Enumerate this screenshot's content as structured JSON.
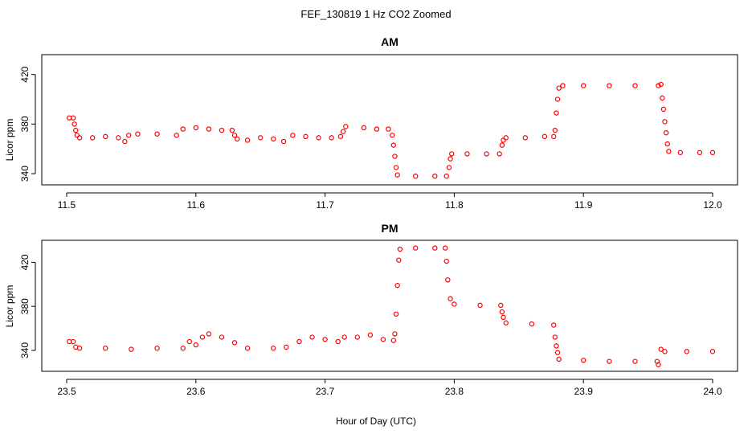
{
  "figure": {
    "title": "FEF_130819  1 Hz CO2 Zoomed",
    "xlabel": "Hour of Day (UTC)",
    "point_color": "#ff0000"
  },
  "chart_data": [
    {
      "type": "scatter",
      "title": "AM",
      "xlabel": "",
      "ylabel": "Licor ppm",
      "xlim": [
        11.5,
        12.0
      ],
      "ylim": [
        331,
        436
      ],
      "xticks": [
        11.5,
        11.6,
        11.7,
        11.8,
        11.9,
        12.0
      ],
      "xtick_labels": [
        "11.5",
        "11.6",
        "11.7",
        "11.8",
        "11.9",
        "12.0"
      ],
      "yticks": [
        340,
        380,
        420
      ],
      "ytick_labels": [
        "340",
        "380",
        "420"
      ],
      "grid": false,
      "series": [
        {
          "marker": "open-circle",
          "color": "#ff0000",
          "points": [
            [
              11.502,
              385
            ],
            [
              11.505,
              385
            ],
            [
              11.506,
              380
            ],
            [
              11.507,
              375
            ],
            [
              11.508,
              371
            ],
            [
              11.51,
              369
            ],
            [
              11.52,
              369
            ],
            [
              11.53,
              370
            ],
            [
              11.54,
              369
            ],
            [
              11.545,
              366
            ],
            [
              11.548,
              371
            ],
            [
              11.555,
              372
            ],
            [
              11.57,
              372
            ],
            [
              11.585,
              371
            ],
            [
              11.59,
              376
            ],
            [
              11.6,
              377
            ],
            [
              11.61,
              376
            ],
            [
              11.62,
              375
            ],
            [
              11.628,
              375
            ],
            [
              11.63,
              371
            ],
            [
              11.632,
              368
            ],
            [
              11.64,
              367
            ],
            [
              11.65,
              369
            ],
            [
              11.66,
              368
            ],
            [
              11.668,
              366
            ],
            [
              11.675,
              371
            ],
            [
              11.685,
              370
            ],
            [
              11.695,
              369
            ],
            [
              11.705,
              369
            ],
            [
              11.712,
              370
            ],
            [
              11.714,
              374
            ],
            [
              11.716,
              378
            ],
            [
              11.73,
              377
            ],
            [
              11.74,
              376
            ],
            [
              11.749,
              376
            ],
            [
              11.752,
              371
            ],
            [
              11.753,
              363
            ],
            [
              11.754,
              354
            ],
            [
              11.755,
              345
            ],
            [
              11.756,
              339
            ],
            [
              11.77,
              338
            ],
            [
              11.785,
              338
            ],
            [
              11.794,
              338
            ],
            [
              11.796,
              345
            ],
            [
              11.797,
              352
            ],
            [
              11.798,
              356
            ],
            [
              11.81,
              356
            ],
            [
              11.825,
              356
            ],
            [
              11.835,
              356
            ],
            [
              11.837,
              363
            ],
            [
              11.838,
              367
            ],
            [
              11.84,
              369
            ],
            [
              11.855,
              369
            ],
            [
              11.87,
              370
            ],
            [
              11.877,
              370
            ],
            [
              11.878,
              375
            ],
            [
              11.879,
              389
            ],
            [
              11.88,
              400
            ],
            [
              11.881,
              409
            ],
            [
              11.884,
              411
            ],
            [
              11.9,
              411
            ],
            [
              11.92,
              411
            ],
            [
              11.94,
              411
            ],
            [
              11.958,
              411
            ],
            [
              11.96,
              412
            ],
            [
              11.961,
              401
            ],
            [
              11.962,
              392
            ],
            [
              11.963,
              382
            ],
            [
              11.964,
              373
            ],
            [
              11.965,
              364
            ],
            [
              11.966,
              358
            ],
            [
              11.975,
              357
            ],
            [
              11.99,
              357
            ],
            [
              12.0,
              357
            ]
          ]
        }
      ]
    },
    {
      "type": "scatter",
      "title": "PM",
      "xlabel": "Hour of Day (UTC)",
      "ylabel": "Licor ppm",
      "xlim": [
        23.5,
        24.0
      ],
      "ylim": [
        321,
        440
      ],
      "xticks": [
        23.5,
        23.6,
        23.7,
        23.8,
        23.9,
        24.0
      ],
      "xtick_labels": [
        "23.5",
        "23.6",
        "23.7",
        "23.8",
        "23.9",
        "24.0"
      ],
      "yticks": [
        340,
        380,
        420
      ],
      "ytick_labels": [
        "340",
        "380",
        "420"
      ],
      "grid": false,
      "series": [
        {
          "marker": "open-circle",
          "color": "#ff0000",
          "points": [
            [
              23.502,
              348
            ],
            [
              23.505,
              348
            ],
            [
              23.507,
              343
            ],
            [
              23.51,
              342
            ],
            [
              23.53,
              342
            ],
            [
              23.55,
              341
            ],
            [
              23.57,
              342
            ],
            [
              23.59,
              342
            ],
            [
              23.595,
              348
            ],
            [
              23.6,
              345
            ],
            [
              23.605,
              352
            ],
            [
              23.61,
              355
            ],
            [
              23.62,
              352
            ],
            [
              23.63,
              347
            ],
            [
              23.64,
              342
            ],
            [
              23.66,
              342
            ],
            [
              23.67,
              343
            ],
            [
              23.68,
              348
            ],
            [
              23.69,
              352
            ],
            [
              23.7,
              350
            ],
            [
              23.71,
              348
            ],
            [
              23.715,
              352
            ],
            [
              23.725,
              352
            ],
            [
              23.735,
              354
            ],
            [
              23.745,
              350
            ],
            [
              23.753,
              349
            ],
            [
              23.754,
              355
            ],
            [
              23.755,
              373
            ],
            [
              23.756,
              399
            ],
            [
              23.757,
              422
            ],
            [
              23.758,
              432
            ],
            [
              23.77,
              433
            ],
            [
              23.785,
              433
            ],
            [
              23.793,
              433
            ],
            [
              23.794,
              421
            ],
            [
              23.795,
              404
            ],
            [
              23.797,
              387
            ],
            [
              23.8,
              382
            ],
            [
              23.82,
              381
            ],
            [
              23.836,
              381
            ],
            [
              23.837,
              375
            ],
            [
              23.838,
              370
            ],
            [
              23.84,
              365
            ],
            [
              23.86,
              364
            ],
            [
              23.877,
              363
            ],
            [
              23.878,
              352
            ],
            [
              23.879,
              344
            ],
            [
              23.88,
              338
            ],
            [
              23.881,
              332
            ],
            [
              23.9,
              331
            ],
            [
              23.92,
              330
            ],
            [
              23.94,
              330
            ],
            [
              23.957,
              330
            ],
            [
              23.958,
              327
            ],
            [
              23.96,
              341
            ],
            [
              23.963,
              339
            ],
            [
              23.98,
              339
            ],
            [
              24.0,
              339
            ]
          ]
        }
      ]
    }
  ]
}
